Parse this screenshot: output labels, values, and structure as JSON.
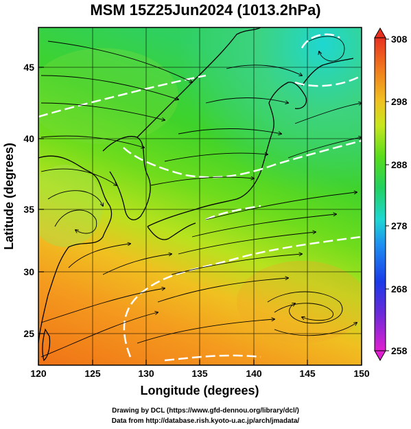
{
  "title": "MSM 15Z25Jun2024 (1013.2hPa)",
  "xlabel": "Longitude (degrees)",
  "ylabel": "Latitude  (degrees)",
  "x_ticks": [
    "120",
    "125",
    "130",
    "135",
    "140",
    "145",
    "150"
  ],
  "y_ticks": [
    "25",
    "30",
    "35",
    "40",
    "45"
  ],
  "colorbar_ticks": [
    "308",
    "298",
    "288",
    "278",
    "268",
    "258"
  ],
  "credits": {
    "line1": "Drawing by DCL (https://www.gfd-dennou.org/library/dcl/)",
    "line2": "Data from http://database.rish.kyoto-u.ac.jp/arch/jmadata/"
  },
  "colors": {
    "warm": "#f07a1e",
    "mild": "#8fdc2a",
    "cool": "#1ed7c8",
    "contour": "#ffffff"
  }
}
